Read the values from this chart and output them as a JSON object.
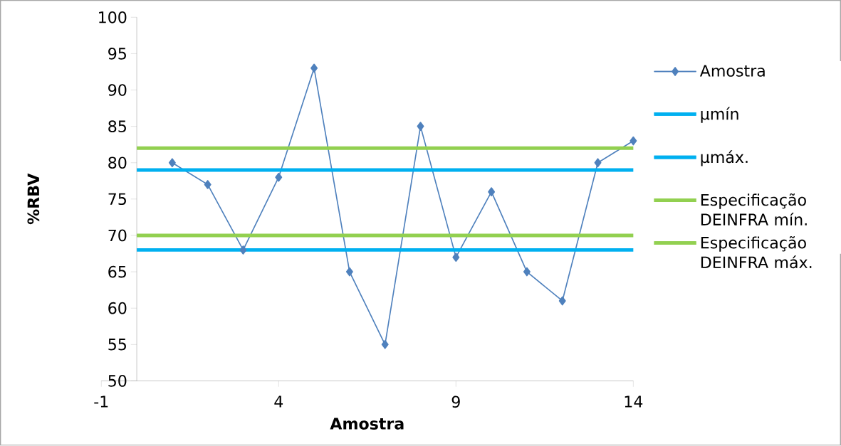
{
  "chart_data": {
    "type": "line",
    "xlabel": "Amostra",
    "ylabel": "%RBV",
    "xlim": [
      -1,
      14
    ],
    "xticks": [
      -1,
      4,
      9,
      14
    ],
    "ylim": [
      50,
      100
    ],
    "yticks": [
      50,
      55,
      60,
      65,
      70,
      75,
      80,
      85,
      90,
      95,
      100
    ],
    "legend": "right",
    "grid": false,
    "series": [
      {
        "name": "Amostra",
        "color": "#4f81bd",
        "marker": "diamond",
        "x": [
          1,
          2,
          3,
          4,
          5,
          6,
          7,
          8,
          9,
          10,
          11,
          12,
          13,
          14
        ],
        "values": [
          80,
          77,
          68,
          78,
          93,
          65,
          55,
          85,
          67,
          76,
          65,
          61,
          80,
          83
        ]
      },
      {
        "name": "µmín",
        "color": "#00b0f0",
        "marker": "none",
        "x": [
          0,
          14
        ],
        "values": [
          79,
          79
        ]
      },
      {
        "name": "µmáx.",
        "color": "#00b0f0",
        "marker": "none",
        "x": [
          0,
          14
        ],
        "values": [
          68,
          68
        ]
      },
      {
        "name": "Especificação DEINFRA mín.",
        "color": "#92d050",
        "marker": "none",
        "x": [
          0,
          14
        ],
        "values": [
          70,
          70
        ]
      },
      {
        "name": "Especificação DEINFRA máx.",
        "color": "#92d050",
        "marker": "none",
        "x": [
          0,
          14
        ],
        "values": [
          82,
          82
        ]
      }
    ]
  }
}
